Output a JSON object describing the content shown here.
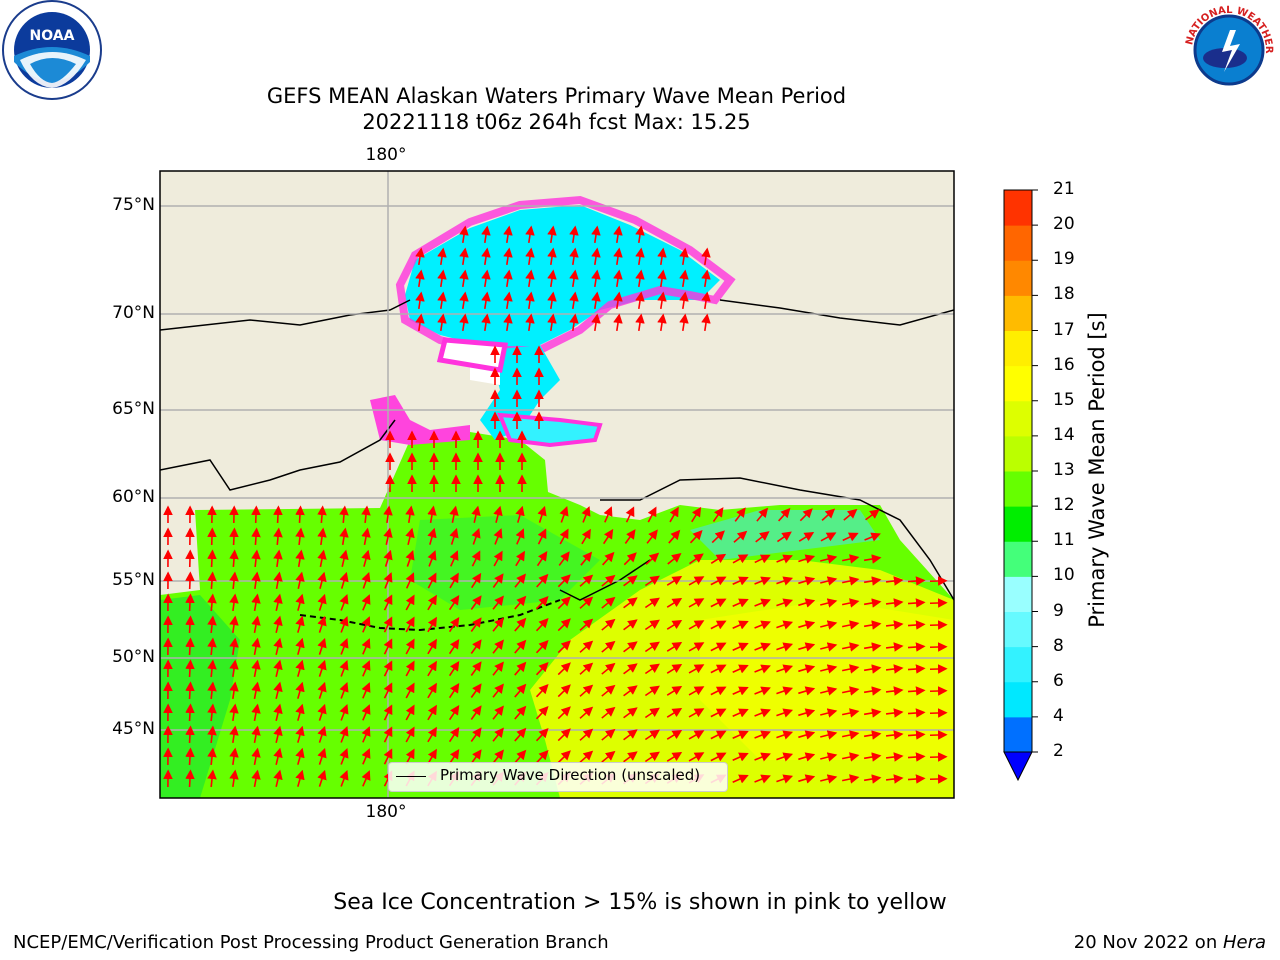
{
  "title_line1": "GEFS MEAN Alaskan Waters Primary Wave Mean Period",
  "title_line2": "20221118 t06z 264h fcst   Max: 15.25",
  "logos": {
    "left": "NOAA",
    "right": "NATIONAL WEATHER SERVICE"
  },
  "map": {
    "lon_label": "180°",
    "lat_labels": [
      "75°N",
      "70°N",
      "65°N",
      "60°N",
      "55°N",
      "50°N",
      "45°N"
    ],
    "land_color": "#efecdc",
    "arrow_color": "#ff0000"
  },
  "legend": {
    "label": "Primary Wave Direction (unscaled)"
  },
  "colorbar": {
    "title": "Primary Wave Mean Period [s]",
    "ticks": [
      "2",
      "4",
      "6",
      "8",
      "9",
      "10",
      "11",
      "12",
      "13",
      "14",
      "15",
      "16",
      "17",
      "18",
      "19",
      "20",
      "21"
    ],
    "colors": [
      "#0070ff",
      "#00e8ff",
      "#33f2ff",
      "#66faff",
      "#99ffff",
      "#44ff7a",
      "#00ee00",
      "#66ff00",
      "#bbff00",
      "#ddff00",
      "#ffff00",
      "#ffee00",
      "#ffbb00",
      "#ff8800",
      "#ff6600",
      "#ff3300",
      "#ff0000"
    ],
    "under_color": "#0000ff"
  },
  "note": "Sea Ice Concentration > 15% is shown in pink to yellow",
  "footer_left": "NCEP/EMC/Verification Post Processing Product Generation Branch",
  "footer_right_date": "20 Nov 2022 on ",
  "footer_right_machine": "Hera"
}
